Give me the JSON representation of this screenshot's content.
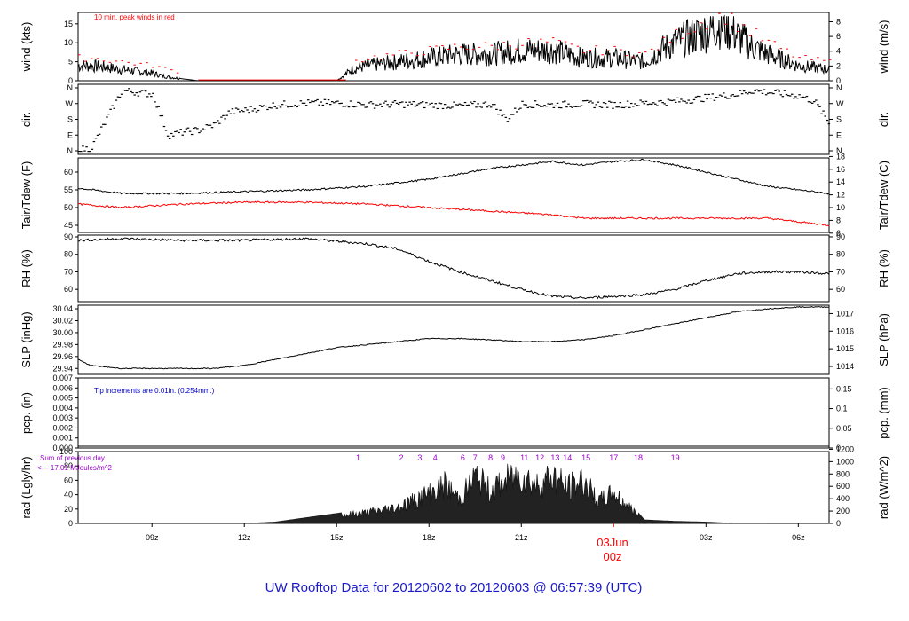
{
  "title": "UW Rooftop Data for 20120602  to  20120603 @ 06:57:39  (UTC)",
  "date_label": "03Jun",
  "date_sub": "00z",
  "x_ticks": [
    "09z",
    "12z",
    "15z",
    "18z",
    "21z",
    "03z",
    "06z"
  ],
  "colors": {
    "line": "#000000",
    "red": "#ff0000",
    "blue": "#0000cc",
    "purple": "#9900cc",
    "title": "#1a1acc"
  },
  "panels": {
    "wind": {
      "left_label": "wind (kts)",
      "right_label": "wind (m/s)",
      "left_ticks": [
        "15",
        "10",
        "5",
        "0"
      ],
      "right_ticks": [
        "8",
        "6",
        "4",
        "2",
        "0"
      ],
      "annotation": "10 min. peak winds in red"
    },
    "dir": {
      "left_label": "dir.",
      "right_label": "dir.",
      "left_ticks": [
        "N",
        "W",
        "S",
        "E",
        "N"
      ],
      "right_ticks": [
        "N",
        "W",
        "S",
        "E",
        "N"
      ]
    },
    "temp": {
      "left_label": "Tair/Tdew (F)",
      "right_label": "Tair/Tdew (C)",
      "left_ticks": [
        "60",
        "55",
        "50",
        "45"
      ],
      "right_ticks": [
        "18",
        "16",
        "14",
        "12",
        "10",
        "8",
        "6"
      ]
    },
    "rh": {
      "left_label": "RH (%)",
      "right_label": "RH (%)",
      "left_ticks": [
        "90",
        "80",
        "70",
        "60"
      ],
      "right_ticks": [
        "90",
        "80",
        "70",
        "60"
      ]
    },
    "slp": {
      "left_label": "SLP (inHg)",
      "right_label": "SLP (hPa)",
      "left_ticks": [
        "30.04",
        "30.02",
        "30.00",
        "29.98",
        "29.96",
        "29.94"
      ],
      "right_ticks": [
        "1017",
        "1016",
        "1015",
        "1014"
      ]
    },
    "pcp": {
      "left_label": "pcp. (in)",
      "right_label": "pcp. (mm)",
      "left_ticks": [
        "0.007",
        "0.006",
        "0.005",
        "0.004",
        "0.003",
        "0.002",
        "0.001",
        "0.000"
      ],
      "right_ticks": [
        "0.15",
        "0.1",
        "0.05",
        "0"
      ],
      "annotation": "Tip increments are 0.01in. (0.254mm.)"
    },
    "rad": {
      "left_label": "rad (Lgly/hr)",
      "right_label": "rad (W/m^2)",
      "left_ticks": [
        "100",
        "80",
        "60",
        "40",
        "20",
        "0"
      ],
      "right_ticks": [
        "1200",
        "1000",
        "800",
        "600",
        "400",
        "200",
        "0"
      ],
      "annotation_1": "Sum of previous day",
      "annotation_2": "<--- 17.01 MJoules/m^2",
      "hour_markers": [
        "1",
        "2",
        "3",
        "4",
        "6",
        "7",
        "8",
        "9",
        "11",
        "12",
        "13",
        "14",
        "15",
        "17",
        "18",
        "19"
      ]
    }
  },
  "chart_data": {
    "type": "line",
    "x_unit": "hours since 06z 2012-06-02",
    "x_range": [
      0.6,
      25.0
    ],
    "wind_kts": {
      "x": [
        0.6,
        1,
        2,
        3,
        3.5,
        4,
        4.5,
        5,
        6,
        7,
        8,
        9,
        9.5,
        10,
        11,
        12,
        13,
        14,
        15,
        16,
        17,
        18,
        19,
        19.5,
        20,
        21,
        21.5,
        22,
        22.5,
        23,
        24,
        25
      ],
      "y": [
        4,
        4,
        3,
        2,
        1,
        0.5,
        0,
        0,
        0,
        0,
        0,
        0,
        3,
        4,
        5,
        6,
        7,
        7,
        8,
        8,
        6,
        6,
        5,
        8,
        10,
        13,
        15,
        12,
        9,
        7,
        4,
        3
      ],
      "ylim": [
        0,
        18
      ]
    },
    "peak_wind_kts": {
      "x": [
        0.6,
        1,
        2,
        3,
        3.5,
        4,
        9.5,
        10,
        11,
        12,
        13,
        14,
        15,
        16,
        17,
        18,
        19,
        20,
        21,
        21.5,
        22,
        23,
        24,
        25
      ],
      "y": [
        6,
        6,
        5,
        4,
        3,
        2,
        5,
        6,
        7,
        8,
        9,
        9,
        10,
        10,
        8,
        8,
        7,
        12,
        16,
        18,
        15,
        10,
        6,
        5
      ],
      "ylim": [
        0,
        18
      ]
    },
    "wind_dir_deg": {
      "x": [
        0.6,
        1,
        2,
        3,
        3.5,
        4,
        4.5,
        5,
        5.5,
        6,
        7,
        8,
        9,
        10,
        11,
        12,
        13,
        14,
        14.5,
        15,
        16,
        17,
        18,
        19,
        20,
        21,
        22,
        22.5,
        23,
        24,
        24.5,
        25
      ],
      "y": [
        10,
        20,
        340,
        320,
        90,
        110,
        120,
        150,
        220,
        230,
        260,
        270,
        270,
        260,
        265,
        260,
        255,
        265,
        180,
        265,
        260,
        265,
        260,
        270,
        280,
        300,
        320,
        340,
        330,
        310,
        280,
        150
      ],
      "ylim": [
        0,
        360
      ]
    },
    "tair_f": {
      "x": [
        0.6,
        2,
        4,
        6,
        8,
        10,
        12,
        14,
        16,
        17,
        18,
        19,
        20,
        21,
        22,
        23,
        24,
        25
      ],
      "y": [
        55.5,
        54,
        54,
        54.5,
        55,
        56,
        58,
        61,
        63,
        62,
        63,
        63.5,
        62,
        60,
        58,
        56,
        55,
        54
      ],
      "ylim": [
        43,
        64
      ]
    },
    "tdew_f": {
      "x": [
        0.6,
        2,
        4,
        6,
        8,
        10,
        12,
        14,
        16,
        17,
        18,
        19,
        20,
        21,
        22,
        23,
        24,
        25
      ],
      "y": [
        51,
        50,
        51,
        51.5,
        51.5,
        51,
        50,
        49,
        48,
        47,
        47,
        47,
        47,
        47,
        47,
        47,
        46,
        45
      ],
      "ylim": [
        43,
        64
      ]
    },
    "rh_pct": {
      "x": [
        0.6,
        2,
        4,
        6,
        8,
        10,
        11,
        12,
        13,
        14,
        15,
        16,
        17,
        18,
        19,
        20,
        21,
        22,
        23,
        24,
        25
      ],
      "y": [
        88,
        89,
        88,
        88,
        89,
        86,
        83,
        76,
        70,
        65,
        60,
        56,
        55,
        56,
        57,
        60,
        65,
        69,
        70,
        70,
        69
      ],
      "ylim": [
        53,
        91
      ]
    },
    "slp_inhg": {
      "x": [
        0.6,
        1,
        2,
        3,
        4,
        5,
        6,
        7,
        8,
        9,
        10,
        11,
        12,
        13,
        14,
        15,
        16,
        17,
        18,
        19,
        20,
        21,
        22,
        23,
        24,
        25
      ],
      "y": [
        29.955,
        29.945,
        29.94,
        29.94,
        29.94,
        29.94,
        29.945,
        29.955,
        29.965,
        29.975,
        29.98,
        29.985,
        29.99,
        29.99,
        29.988,
        29.985,
        29.985,
        29.988,
        29.995,
        30.005,
        30.015,
        30.025,
        30.035,
        30.04,
        30.043,
        30.043
      ],
      "ylim": [
        29.93,
        30.046
      ]
    },
    "pcp_in": {
      "x": [
        0.6,
        25.0
      ],
      "y": [
        0,
        0
      ],
      "ylim": [
        0,
        0.007
      ]
    },
    "rad_lgly_hr": {
      "x": [
        6,
        7,
        8,
        9,
        10,
        11,
        12,
        12.5,
        13,
        13.5,
        14,
        14.5,
        15,
        15.5,
        16,
        16.5,
        17,
        17.5,
        18,
        18.5,
        19,
        20,
        21,
        22,
        23
      ],
      "y": [
        0,
        2,
        8,
        14,
        20,
        30,
        55,
        70,
        45,
        85,
        60,
        78,
        90,
        70,
        88,
        65,
        80,
        40,
        55,
        30,
        5,
        3,
        2,
        0,
        0
      ],
      "ylim": [
        0,
        100
      ]
    }
  }
}
